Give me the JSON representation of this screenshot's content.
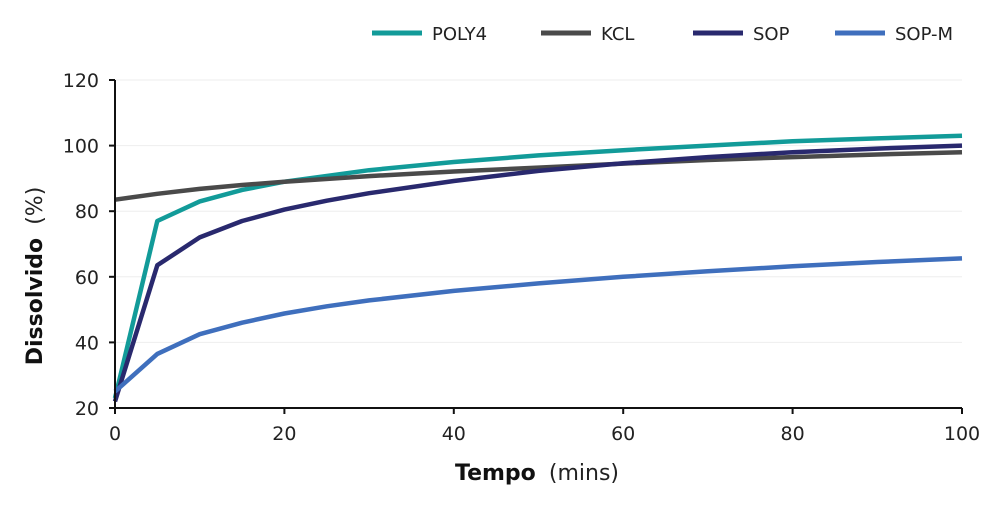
{
  "chart_data": {
    "type": "line",
    "title": "",
    "xlabel": "Tempo",
    "xunit": "(mins)",
    "ylabel": "Dissolvido",
    "yunit": "(%)",
    "xlim": [
      0,
      100
    ],
    "ylim": [
      20,
      120
    ],
    "xticks": [
      0,
      20,
      40,
      60,
      80,
      100
    ],
    "yticks": [
      20,
      40,
      60,
      80,
      100,
      120
    ],
    "grid": "horizontal",
    "legend": "top",
    "series": [
      {
        "name": "POLY4",
        "color": "#129b99",
        "x": [
          0,
          5,
          10,
          15,
          20,
          30,
          40,
          50,
          60,
          70,
          80,
          90,
          100
        ],
        "y": [
          23,
          77,
          83,
          86.5,
          89,
          92.5,
          95,
          97,
          98.6,
          100,
          101.3,
          102.2,
          103
        ]
      },
      {
        "name": "KCL",
        "color": "#4a4a4a",
        "x": [
          0,
          5,
          10,
          15,
          20,
          30,
          40,
          50,
          60,
          70,
          80,
          90,
          100
        ],
        "y": [
          83.5,
          85.3,
          86.8,
          88,
          89,
          90.7,
          92.1,
          93.3,
          94.5,
          95.6,
          96.5,
          97.3,
          98
        ]
      },
      {
        "name": "SOP",
        "color": "#29296e",
        "x": [
          0,
          5,
          10,
          15,
          20,
          25,
          30,
          40,
          50,
          60,
          70,
          80,
          90,
          100
        ],
        "y": [
          22,
          63.5,
          72,
          77,
          80.5,
          83.2,
          85.5,
          89.2,
          92.3,
          94.6,
          96.5,
          98,
          99.1,
          100
        ]
      },
      {
        "name": "SOP-M",
        "color": "#3f6fbd",
        "x": [
          0,
          5,
          10,
          15,
          20,
          25,
          30,
          40,
          50,
          60,
          70,
          80,
          90,
          100
        ],
        "y": [
          25,
          36.5,
          42.5,
          46,
          48.8,
          51,
          52.8,
          55.7,
          58,
          60,
          61.7,
          63.2,
          64.5,
          65.6
        ]
      }
    ]
  }
}
